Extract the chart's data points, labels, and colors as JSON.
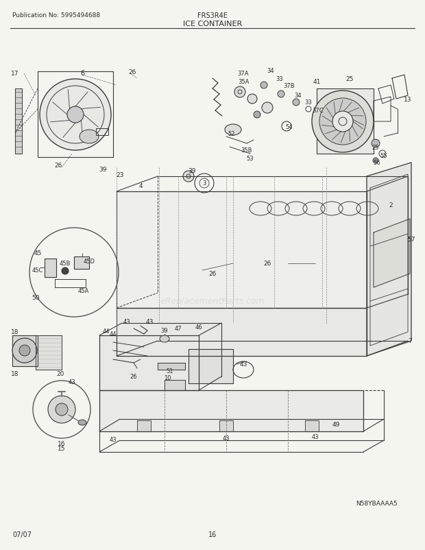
{
  "pub_no": "Publication No: 5995494688",
  "model": "FRS3R4E",
  "section": "ICE CONTAINER",
  "date": "07/07",
  "page": "16",
  "diagram_id": "N58YBAAAA5",
  "bg_color": "#f5f5f0",
  "line_color": "#3a3a3a",
  "text_color": "#2a2a2a",
  "figsize": [
    6.2,
    8.03
  ],
  "dpi": 100
}
